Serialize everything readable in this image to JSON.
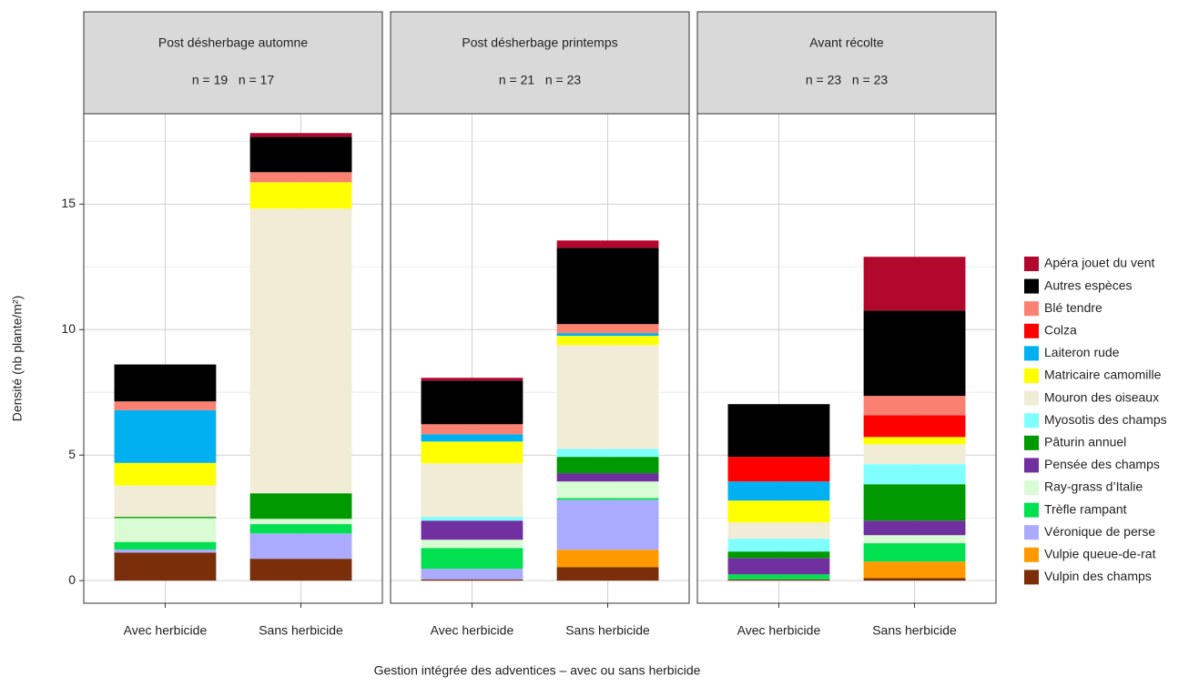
{
  "chart_data": {
    "type": "stacked-bar",
    "y_label": "Densité (nb plante/m²)",
    "x_label": "Gestion intégrée des adventices – avec ou sans herbicide",
    "ylim": [
      -0.9,
      18.6
    ],
    "yticks": [
      0,
      5,
      10,
      15
    ],
    "minor_yticks": [
      2.5,
      7.5,
      12.5,
      17.5
    ],
    "grid": true,
    "legend": "right",
    "series": [
      {
        "name": "Apéra jouet du vent",
        "color": "#b3082e"
      },
      {
        "name": "Autres espèces",
        "color": "#000000"
      },
      {
        "name": "Blé tendre",
        "color": "#fa8072"
      },
      {
        "name": "Colza",
        "color": "#ff0000"
      },
      {
        "name": "Laiteron rude",
        "color": "#00b0f0"
      },
      {
        "name": "Matricaire camomille",
        "color": "#ffff00"
      },
      {
        "name": "Mouron des oiseaux",
        "color": "#f1ecd5"
      },
      {
        "name": "Myosotis des champs",
        "color": "#80ffff"
      },
      {
        "name": "Pâturin annuel",
        "color": "#009900"
      },
      {
        "name": "Pensée des champs",
        "color": "#7030a0"
      },
      {
        "name": "Ray-grass d’Italie",
        "color": "#d9fcd4"
      },
      {
        "name": "Trèfle rampant",
        "color": "#00e050"
      },
      {
        "name": "Véronique de perse",
        "color": "#aaaaff"
      },
      {
        "name": "Vulpie queue-de-rat",
        "color": "#ff9900"
      },
      {
        "name": "Vulpin des champs",
        "color": "#7a2e0a"
      }
    ],
    "panels": [
      {
        "title": "Post désherbage automne",
        "subtitle": "n = 19   n = 17",
        "categories": [
          "Avec herbicide",
          "Sans herbicide"
        ],
        "values": [
          [
            0,
            0.15
          ],
          [
            1.47,
            1.41
          ],
          [
            0.35,
            0.4
          ],
          [
            0,
            0
          ],
          [
            2.1,
            0
          ],
          [
            0.9,
            1.05
          ],
          [
            1.25,
            11.34
          ],
          [
            0,
            0
          ],
          [
            0.05,
            1.02
          ],
          [
            0,
            0
          ],
          [
            0.95,
            0.21
          ],
          [
            0.3,
            0.37
          ],
          [
            0.12,
            1.01
          ],
          [
            0,
            0
          ],
          [
            1.12,
            0.87
          ]
        ]
      },
      {
        "title": "Post désherbage printemps",
        "subtitle": "n = 21   n = 23",
        "categories": [
          "Avec herbicide",
          "Sans herbicide"
        ],
        "values": [
          [
            0.11,
            0.29
          ],
          [
            1.74,
            3.04
          ],
          [
            0.4,
            0.36
          ],
          [
            0,
            0
          ],
          [
            0.29,
            0.11
          ],
          [
            0.87,
            0.37
          ],
          [
            2.13,
            4.13
          ],
          [
            0.15,
            0.32
          ],
          [
            0,
            0.65
          ],
          [
            0.76,
            0.33
          ],
          [
            0.33,
            0.66
          ],
          [
            0.83,
            0.07
          ],
          [
            0.42,
            1.99
          ],
          [
            0,
            0.69
          ],
          [
            0.05,
            0.54
          ]
        ]
      },
      {
        "title": "Avant récolte",
        "subtitle": "n = 23   n = 23",
        "categories": [
          "Avec herbicide",
          "Sans herbicide"
        ],
        "values": [
          [
            0,
            2.14
          ],
          [
            2.1,
            3.4
          ],
          [
            0,
            0.77
          ],
          [
            0.98,
            0.87
          ],
          [
            0.76,
            0
          ],
          [
            0.87,
            0.29
          ],
          [
            0.65,
            0.79
          ],
          [
            0.51,
            0.8
          ],
          [
            0.26,
            1.45
          ],
          [
            0.65,
            0.58
          ],
          [
            0,
            0.32
          ],
          [
            0.2,
            0.73
          ],
          [
            0,
            0
          ],
          [
            0,
            0.66
          ],
          [
            0.05,
            0.1
          ]
        ]
      }
    ]
  }
}
